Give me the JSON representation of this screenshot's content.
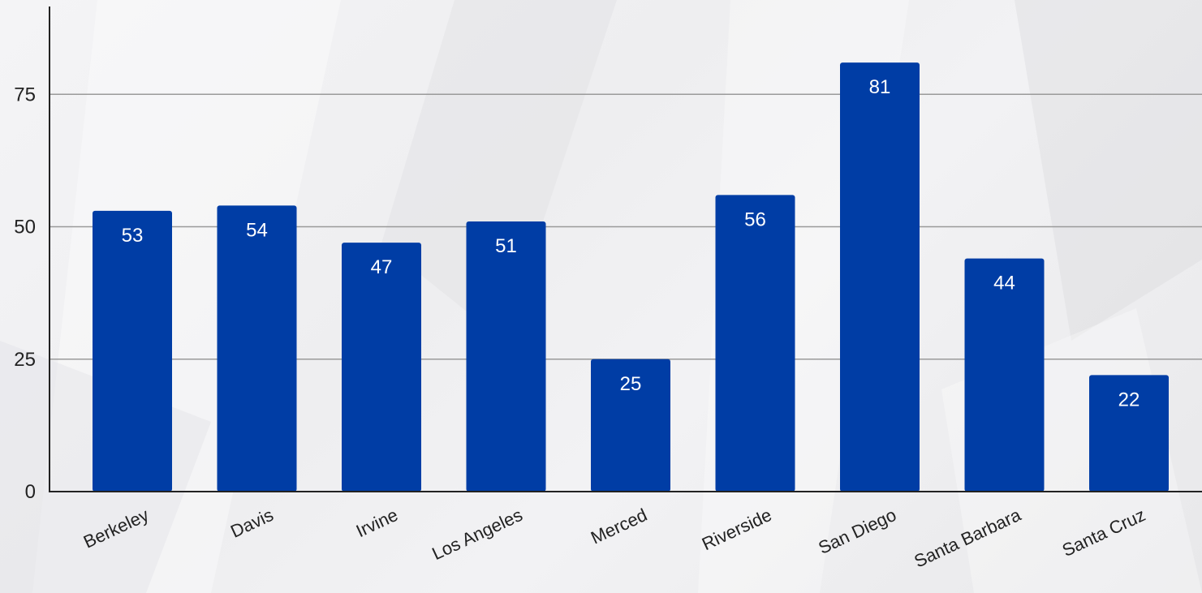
{
  "chart_data": {
    "type": "bar",
    "categories": [
      "Berkeley",
      "Davis",
      "Irvine",
      "Los Angeles",
      "Merced",
      "Riverside",
      "San Diego",
      "Santa Barbara",
      "Santa Cruz"
    ],
    "series": [
      {
        "values": [
          53,
          54,
          47,
          51,
          25,
          56,
          81,
          44,
          22
        ]
      }
    ],
    "title": "",
    "xlabel": "",
    "ylabel": "",
    "ylim": [
      0,
      90
    ],
    "yticks": [
      0,
      25,
      50,
      75
    ],
    "grid": true,
    "data_labels": true,
    "bar_color": "#003da5",
    "gridline_color": "#9a9a9a",
    "axis_color": "#222222"
  }
}
